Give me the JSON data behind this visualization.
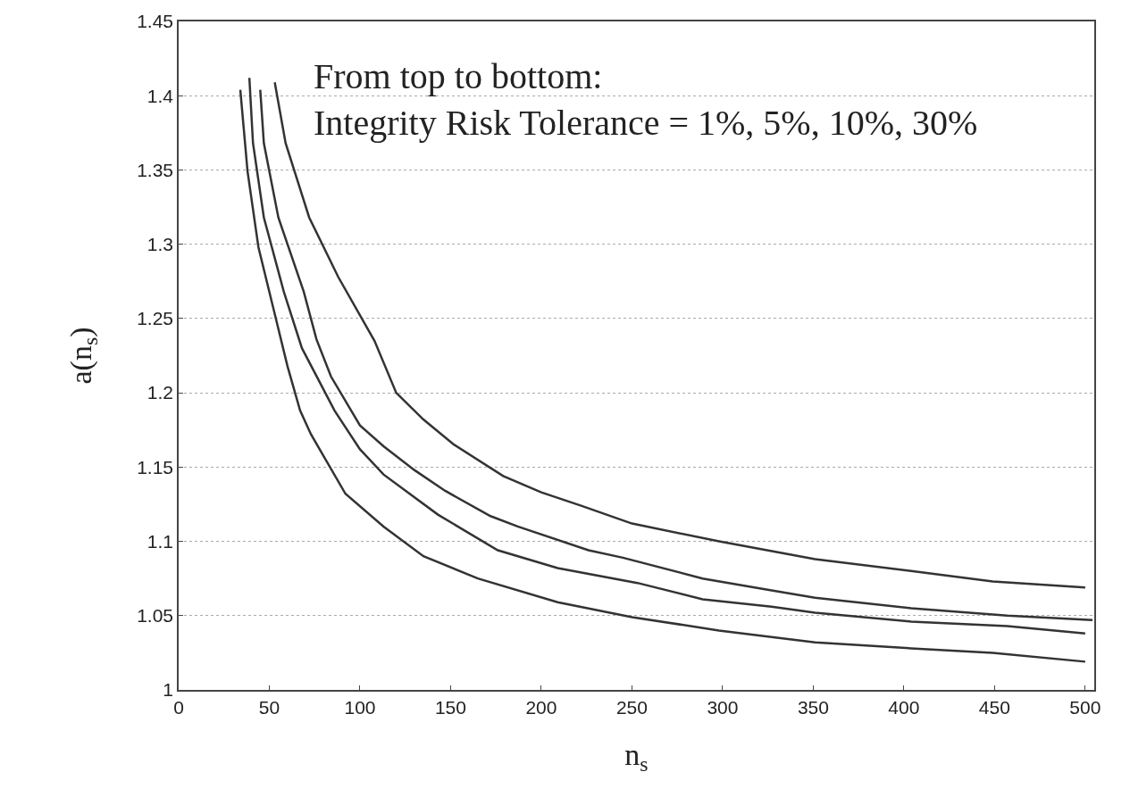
{
  "chart_data": {
    "type": "line",
    "xlabel": "n$_{s}$",
    "ylabel": "a(n$_{s}$)",
    "annotations": [
      "From top to bottom:\nIntegrity Risk Tolerance = 1%, 5%, 10%, 30%"
    ],
    "xlim": [
      0,
      505
    ],
    "xticks": [
      0,
      50,
      100,
      150,
      200,
      250,
      300,
      350,
      400,
      450,
      500
    ],
    "ylim": [
      1,
      1.45
    ],
    "yticks": [
      1,
      1.05,
      1.1,
      1.15,
      1.2,
      1.25,
      1.3,
      1.35,
      1.4,
      1.45
    ],
    "grid": "y",
    "marker": "none",
    "line_style": "solid",
    "series": [
      {
        "color": "#333333",
        "x": [
          53,
          59,
          72,
          88,
          108,
          120,
          135,
          152,
          179,
          200,
          222,
          250,
          298,
          351,
          404,
          449,
          500
        ],
        "values": [
          1.409,
          1.368,
          1.318,
          1.278,
          1.235,
          1.2,
          1.182,
          1.165,
          1.144,
          1.133,
          1.124,
          1.112,
          1.1,
          1.088,
          1.08,
          1.073,
          1.069
        ]
      },
      {
        "color": "#333333",
        "x": [
          45,
          47,
          55,
          69,
          76,
          84,
          100,
          113,
          130,
          147,
          172,
          187,
          226,
          245,
          289,
          327,
          351,
          404,
          457,
          504
        ],
        "values": [
          1.404,
          1.368,
          1.318,
          1.268,
          1.236,
          1.211,
          1.178,
          1.164,
          1.148,
          1.134,
          1.117,
          1.11,
          1.094,
          1.089,
          1.075,
          1.067,
          1.062,
          1.055,
          1.05,
          1.047
        ]
      },
      {
        "color": "#333333",
        "x": [
          39,
          41,
          47,
          58,
          68,
          86,
          100,
          113,
          143,
          176,
          209,
          253,
          289,
          327,
          351,
          404,
          457,
          500
        ],
        "values": [
          1.412,
          1.368,
          1.318,
          1.268,
          1.23,
          1.188,
          1.162,
          1.145,
          1.118,
          1.094,
          1.082,
          1.072,
          1.061,
          1.056,
          1.052,
          1.046,
          1.043,
          1.038
        ]
      },
      {
        "color": "#333333",
        "x": [
          34,
          38,
          44,
          52,
          60,
          67,
          73,
          92,
          113,
          135,
          165,
          209,
          250,
          298,
          351,
          404,
          449,
          500
        ],
        "values": [
          1.404,
          1.349,
          1.298,
          1.258,
          1.218,
          1.188,
          1.172,
          1.132,
          1.11,
          1.09,
          1.075,
          1.059,
          1.049,
          1.04,
          1.032,
          1.028,
          1.025,
          1.019
        ]
      }
    ]
  }
}
